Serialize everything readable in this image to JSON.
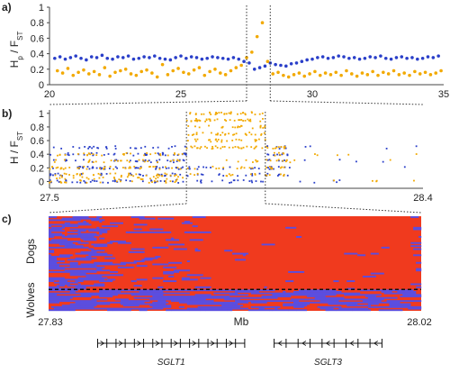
{
  "colors": {
    "hp": "#2a3fc9",
    "fst": "#f2a900",
    "heat_red": "#f03a1e",
    "heat_blue": "#5a4ee0",
    "axis": "#444444",
    "divider": "#111111"
  },
  "chart_data": [
    {
      "id": "a",
      "type": "scatter",
      "panel_label": "a)",
      "ylabel_main": "H",
      "ylabel_sub1": "p",
      "ylabel_mid": " / F",
      "ylabel_sub2": "ST",
      "xlim": [
        20,
        35
      ],
      "ylim": [
        0,
        1
      ],
      "xticks": [
        "20",
        "25",
        "30",
        "35"
      ],
      "yticks": [
        "0",
        "0.2",
        "0.4",
        "0.6",
        "0.8",
        "1"
      ],
      "zoom_range": [
        27.5,
        28.4
      ],
      "series": [
        {
          "color_key": "hp",
          "x": [
            20.2,
            20.4,
            20.6,
            20.8,
            21.0,
            21.2,
            21.4,
            21.6,
            21.8,
            22.0,
            22.2,
            22.4,
            22.6,
            22.8,
            23.0,
            23.2,
            23.4,
            23.6,
            23.8,
            24.0,
            24.2,
            24.4,
            24.6,
            24.8,
            25.0,
            25.2,
            25.4,
            25.6,
            25.8,
            26.0,
            26.2,
            26.4,
            26.6,
            26.8,
            27.0,
            27.2,
            27.4,
            27.6,
            27.8,
            28.0,
            28.2,
            28.4,
            28.6,
            28.8,
            29.0,
            29.2,
            29.4,
            29.6,
            29.8,
            30.0,
            30.2,
            30.4,
            30.6,
            30.8,
            31.0,
            31.2,
            31.4,
            31.6,
            31.8,
            32.0,
            32.2,
            32.4,
            32.6,
            32.8,
            33.0,
            33.2,
            33.4,
            33.6,
            33.8,
            34.0,
            34.2,
            34.4,
            34.6,
            34.8
          ],
          "y": [
            0.34,
            0.36,
            0.33,
            0.35,
            0.37,
            0.34,
            0.32,
            0.36,
            0.35,
            0.38,
            0.34,
            0.33,
            0.36,
            0.35,
            0.37,
            0.33,
            0.34,
            0.36,
            0.35,
            0.37,
            0.34,
            0.33,
            0.32,
            0.35,
            0.37,
            0.34,
            0.36,
            0.35,
            0.33,
            0.34,
            0.36,
            0.35,
            0.34,
            0.33,
            0.35,
            0.33,
            0.3,
            0.28,
            0.2,
            0.22,
            0.24,
            0.28,
            0.26,
            0.25,
            0.24,
            0.27,
            0.28,
            0.3,
            0.32,
            0.33,
            0.35,
            0.36,
            0.34,
            0.35,
            0.37,
            0.36,
            0.34,
            0.35,
            0.33,
            0.34,
            0.36,
            0.35,
            0.37,
            0.34,
            0.33,
            0.35,
            0.36,
            0.34,
            0.35,
            0.33,
            0.34,
            0.36,
            0.35,
            0.37
          ]
        },
        {
          "color_key": "fst",
          "x": [
            20.3,
            20.5,
            20.7,
            20.9,
            21.1,
            21.3,
            21.5,
            21.7,
            21.9,
            22.1,
            22.3,
            22.5,
            22.7,
            22.9,
            23.1,
            23.3,
            23.5,
            23.7,
            23.9,
            24.1,
            24.3,
            24.5,
            24.7,
            24.9,
            25.1,
            25.3,
            25.5,
            25.7,
            25.9,
            26.1,
            26.3,
            26.5,
            26.7,
            26.9,
            27.1,
            27.3,
            27.5,
            27.7,
            27.9,
            28.1,
            28.3,
            28.5,
            28.7,
            28.9,
            29.1,
            29.3,
            29.5,
            29.7,
            29.9,
            30.1,
            30.3,
            30.5,
            30.7,
            30.9,
            31.1,
            31.3,
            31.5,
            31.7,
            31.9,
            32.1,
            32.3,
            32.5,
            32.7,
            32.9,
            33.1,
            33.3,
            33.5,
            33.7,
            33.9,
            34.1,
            34.3,
            34.5,
            34.7,
            34.9
          ],
          "y": [
            0.18,
            0.15,
            0.21,
            0.12,
            0.16,
            0.19,
            0.14,
            0.17,
            0.13,
            0.22,
            0.11,
            0.16,
            0.18,
            0.2,
            0.14,
            0.12,
            0.17,
            0.19,
            0.15,
            0.1,
            0.26,
            0.13,
            0.18,
            0.21,
            0.16,
            0.14,
            0.19,
            0.22,
            0.12,
            0.17,
            0.2,
            0.15,
            0.13,
            0.18,
            0.22,
            0.25,
            0.35,
            0.42,
            0.62,
            0.8,
            0.3,
            0.14,
            0.16,
            0.12,
            0.1,
            0.13,
            0.15,
            0.11,
            0.14,
            0.17,
            0.12,
            0.15,
            0.13,
            0.16,
            0.12,
            0.18,
            0.14,
            0.11,
            0.15,
            0.13,
            0.17,
            0.12,
            0.16,
            0.14,
            0.18,
            0.13,
            0.15,
            0.12,
            0.17,
            0.14,
            0.16,
            0.13,
            0.15,
            0.18
          ]
        }
      ]
    },
    {
      "id": "b",
      "type": "scatter",
      "panel_label": "b)",
      "ylabel_main": "H / F",
      "ylabel_sub2": "ST",
      "xlim": [
        27.5,
        28.4
      ],
      "ylim": [
        -0.1,
        1.05
      ],
      "xticks": [
        "27.5",
        "28.4"
      ],
      "yticks": [
        "0",
        "0.2",
        "0.4",
        "0.6",
        "0.8",
        "1"
      ],
      "zoom_range": [
        27.83,
        28.02
      ],
      "point_clusters": [
        {
          "color_key": "hp",
          "x_range": [
            27.5,
            27.83
          ],
          "y_values": [
            0,
            0.1,
            0.2,
            0.3,
            0.4,
            0.5
          ],
          "count": 210
        },
        {
          "color_key": "fst",
          "x_range": [
            27.5,
            27.83
          ],
          "y_values": [
            0,
            0.05,
            0.1,
            0.2,
            0.3,
            0.4
          ],
          "count": 180
        },
        {
          "color_key": "hp",
          "x_range": [
            27.83,
            28.02
          ],
          "y_values": [
            0,
            0.1,
            0.2
          ],
          "count": 45
        },
        {
          "color_key": "fst",
          "x_range": [
            27.83,
            28.02
          ],
          "y_values": [
            0.5,
            0.6,
            0.7,
            0.8,
            0.9,
            1.0
          ],
          "count": 170
        },
        {
          "color_key": "fst",
          "x_range": [
            27.83,
            28.02
          ],
          "y_values": [
            0.1,
            0.2,
            0.3
          ],
          "count": 30
        },
        {
          "color_key": "hp",
          "x_range": [
            28.02,
            28.08
          ],
          "y_values": [
            0.1,
            0.2,
            0.3,
            0.4,
            0.5
          ],
          "count": 40
        },
        {
          "color_key": "fst",
          "x_range": [
            28.02,
            28.08
          ],
          "y_values": [
            0.1,
            0.2,
            0.3,
            0.4,
            0.5
          ],
          "count": 40
        },
        {
          "color_key": "hp",
          "x_range": [
            28.08,
            28.4
          ],
          "y_values": [
            0,
            0.2,
            0.3,
            0.5
          ],
          "count": 14
        },
        {
          "color_key": "fst",
          "x_range": [
            28.08,
            28.4
          ],
          "y_values": [
            0,
            0.1,
            0.3,
            0.4
          ],
          "count": 12
        }
      ]
    },
    {
      "id": "c",
      "type": "heatmap",
      "panel_label": "c)",
      "xlim": [
        27.83,
        28.02
      ],
      "xtick_left": "27.83",
      "xtick_right": "28.02",
      "xlabel": "Mb",
      "row_group_top": "Dogs",
      "row_group_bottom": "Wolves",
      "rows_dogs": 48,
      "rows_wolves": 14,
      "cols": 140
    }
  ],
  "genes": [
    {
      "label": "SGLT1",
      "start": 27.855,
      "end": 27.93
    },
    {
      "label": "SGLT3",
      "start": 27.945,
      "end": 28.0
    }
  ]
}
